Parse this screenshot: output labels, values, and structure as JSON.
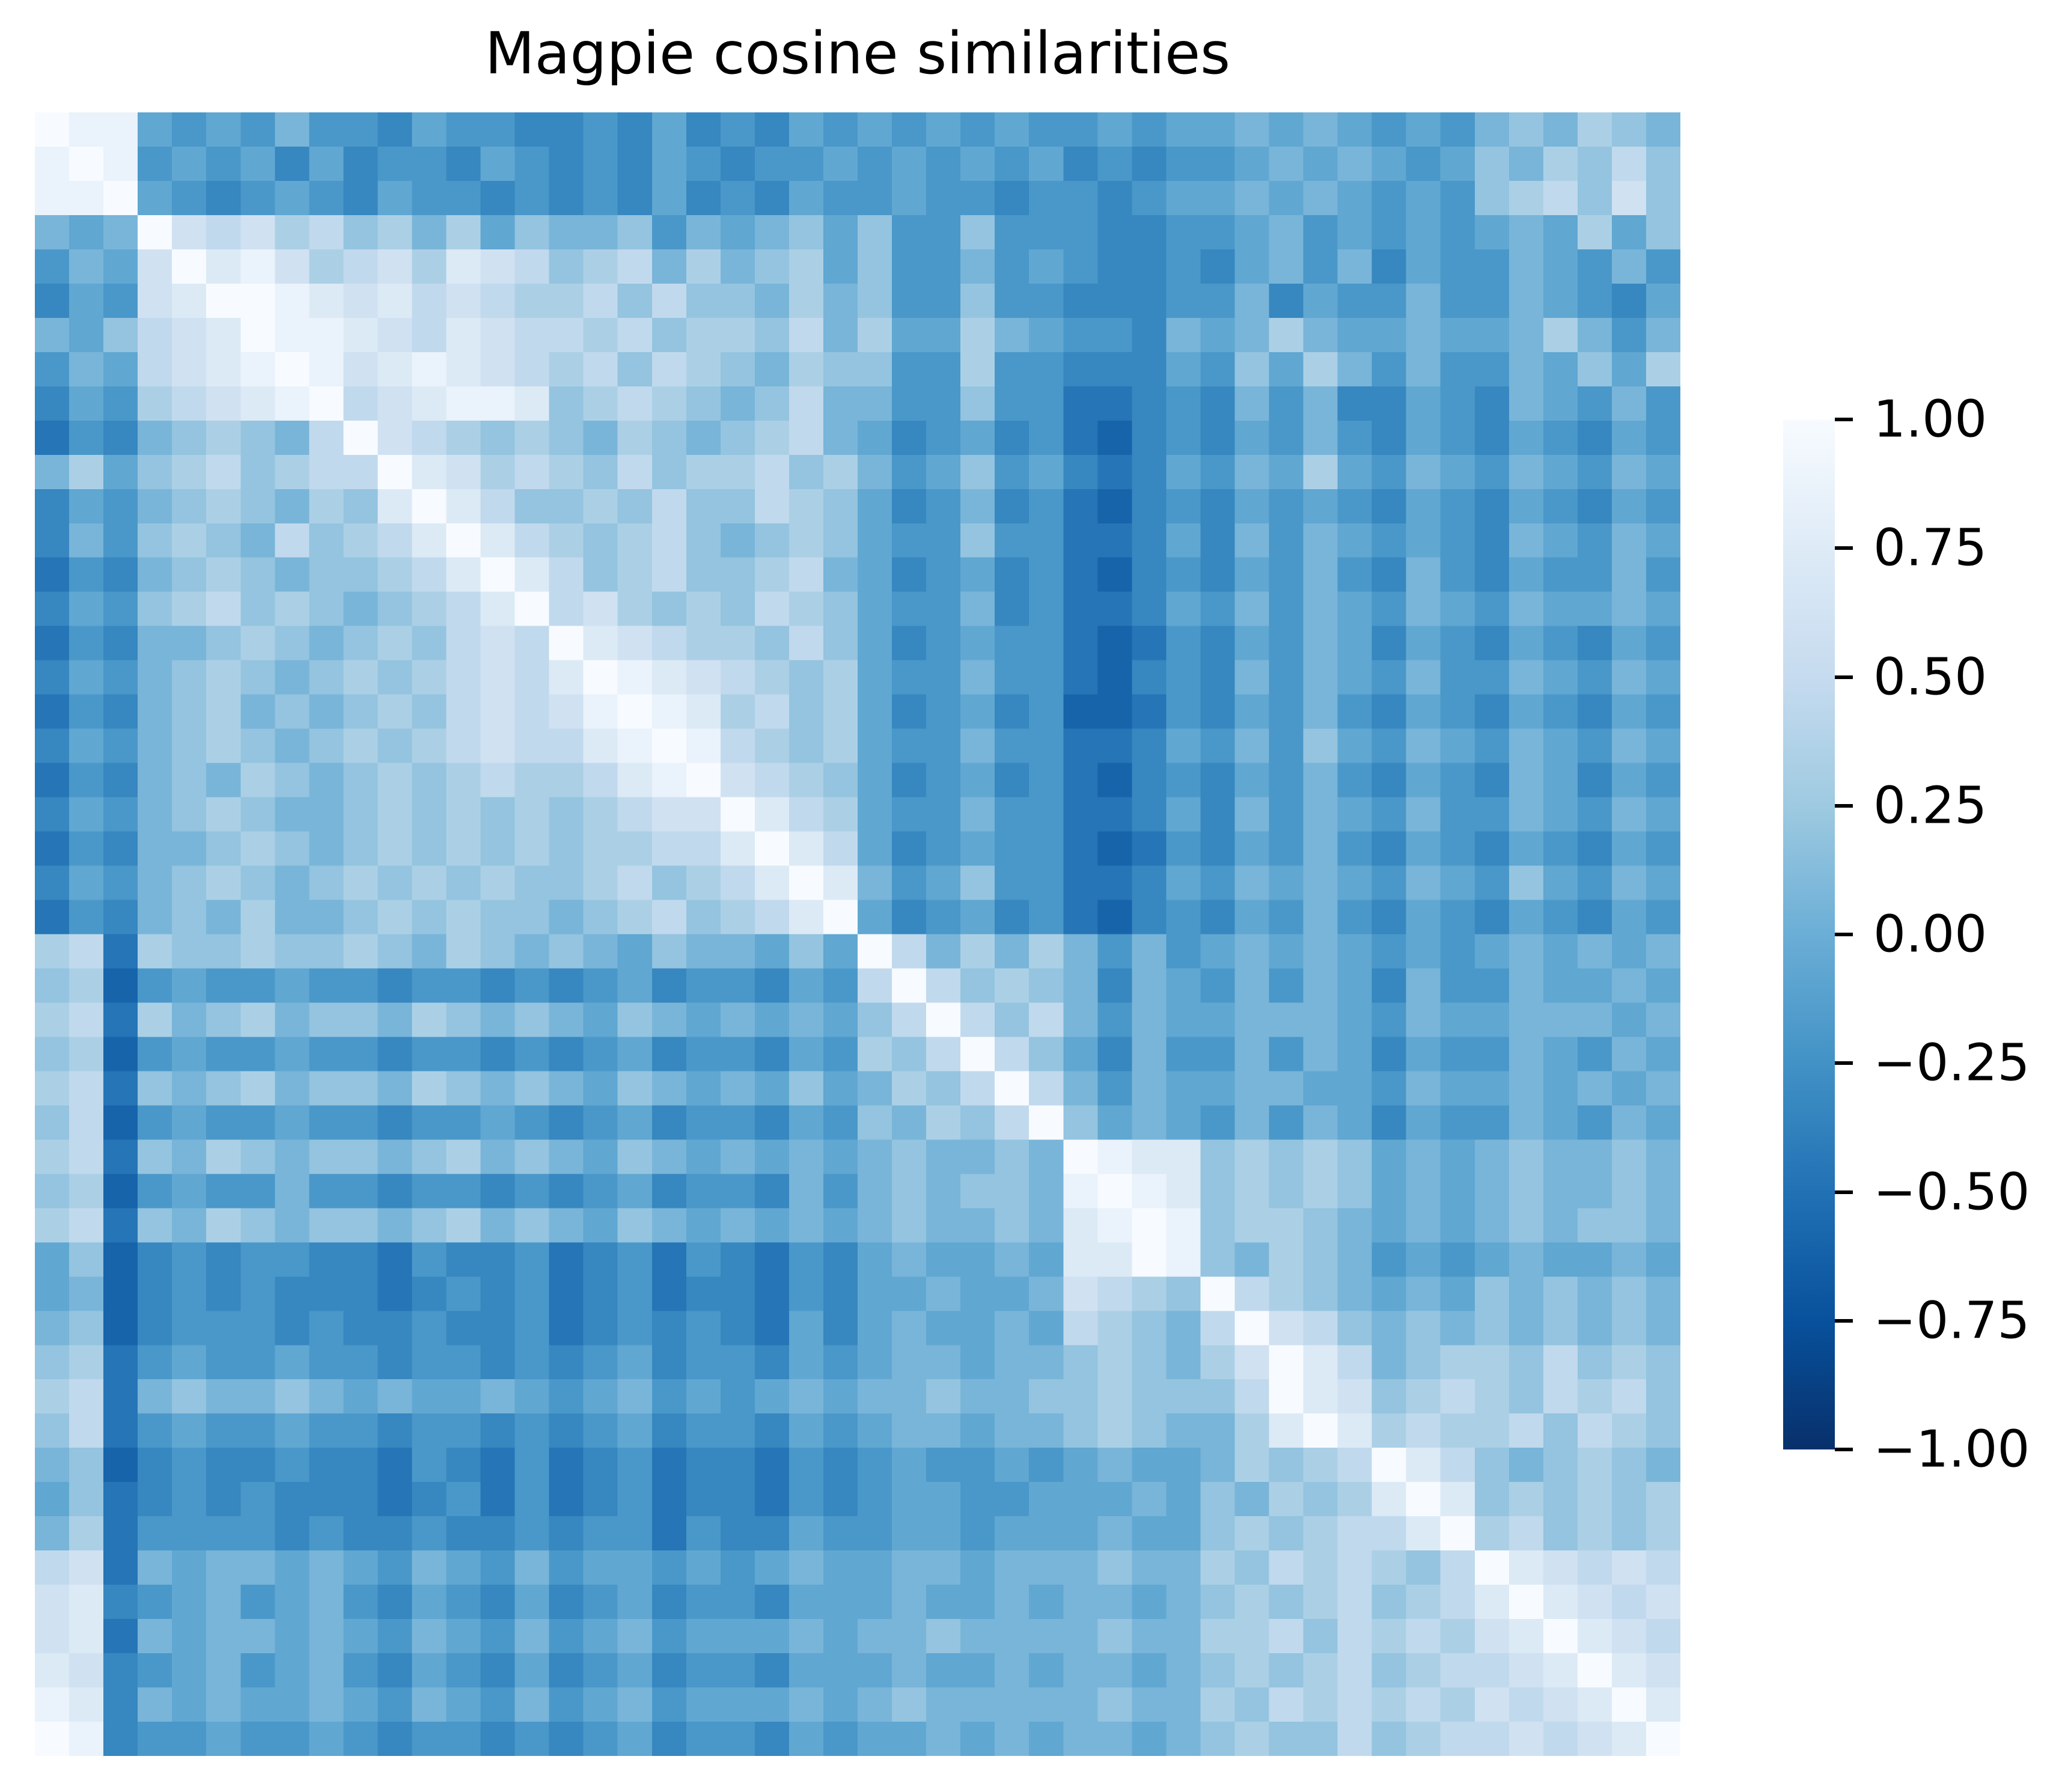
{
  "figure": {
    "title": "Magpie cosine similarities",
    "background_color": "#ffffff",
    "text_color": "#000000"
  },
  "chart_data": {
    "type": "heatmap",
    "title": "Magpie cosine similarities",
    "xlabel": "",
    "ylabel": "",
    "x_tick_labels_visible": false,
    "y_tick_labels_visible": false,
    "grid": false,
    "value_range": [
      -1.0,
      1.0
    ],
    "colormap": {
      "name": "Blues_r (light = high, dark = low)",
      "stops_top_to_bottom": [
        "#f7fbff",
        "#deebf7",
        "#c6dbef",
        "#9ecae1",
        "#6baed6",
        "#4292c6",
        "#2171b5",
        "#08519c",
        "#08306b"
      ]
    },
    "colorbar": {
      "position": "right",
      "ticks": [
        {
          "value": 1.0,
          "label": "1.00"
        },
        {
          "value": 0.75,
          "label": "0.75"
        },
        {
          "value": 0.5,
          "label": "0.50"
        },
        {
          "value": 0.25,
          "label": "0.25"
        },
        {
          "value": 0.0,
          "label": "0.00"
        },
        {
          "value": -0.25,
          "label": "−0.25"
        },
        {
          "value": -0.5,
          "label": "−0.50"
        },
        {
          "value": -0.75,
          "label": "−0.75"
        },
        {
          "value": -1.0,
          "label": "−1.00"
        }
      ]
    },
    "grid_size": 48,
    "value_encoding": "each hex digit 0-f maps linearly to cosine similarity -1.0 (0) through +1.0 (f); matrix is a visually-estimated downsample of the ~95x95 cell grid",
    "matrix_rows": [
      "fee767686657665565756576767676676778787676898a98",
      "efe67675756657656576566767676756566787876798a9b9",
      "eef7656765766565657565766766566567787876769ab9c9",
      "878fcbcab9a8a79889687897966966655667867676787a79",
      "687cfdecabcadcb9ab8a89a7966867655657868576687686",
      "576cdffedcdbcbaab9b998a8966966555668576686687657",
      "879bcdfeedcbdcbbab9aa9b8a77a87665878a8778778a868",
      "687bcdefecdedcbab9ba98a9966a665557697a868668797a",
      "576abcdefbcdeed9aba989b8866966445658685576587686",
      "46589a98bfcba9a98a989ab8756756435657686576576576",
      "8a79ab9abbfdcaba9b9aab9a8679675457687a7687687687",
      "57689a98a9dfdb99a9b99ba9756856435657676576576576",
      "5869a98b9abdfdba9ab989a9766966445758687676587687",
      "46589a9899abdfdb9ab99ab8756756435657686586576686",
      "5769ab9a989abdfbca9a9ba9766856445768687687687787",
      "465889a989a9bcbfdcbaa9b9756766434657687576576576",
      "57689a989a9abcbdfedcba9a766866435658687686687687",
      "46589a8989a9bcbcefedab9a756756334657686576576576",
      "57689a989a9abcbbdefeba9a766866445768697687687687",
      "465898a989a9abaabdefcba9756756435657686576587576",
      "57689a9889a9a9a9abccfdba766866445758687686687687",
      "465889a989a9a9a9aabbdfdb756766434657686576576576",
      "57689a989a9a9a99ab9abdfd867966445768787687697687",
      "465898a889a9a9989ab9abdf756756435657686576576576",
      "ab4a99a99a98a98987988797fb8a8a868678787676787878",
      "9a3676676656656567566576bfb9a9858768687586687787",
      "ab4a89a8998a9898798787879bfb9b868778887687788878",
      "9a3676676656656567566576a9bfb9758668687576687687",
      "ab4989a8998a9898798787978a9bfb868778877687787878",
      "9b367667665667656756657698a9bf978768687576687687",
      "ab498a989989a89879878787898898fedd9a9a9787898898",
      "9a3676686656656567566586898998efed9a9a9787898898",
      "ab498a989989a89879878787898898defe9aa98787898998",
      "793565665546556456465465787787ddfe98a98676787787",
      "783565655545656456455465778778cba9fba98787989898",
      "893566656556556456565475787787ba98bfcb9898989898",
      "9a46766766566565675665767887889a98acfdb89aa9b9a9",
      "ab48988987877876786767878898899a999bfdc9aba9bab9",
      "9b46766766566565675665767887889a988adfdabaab9ba9",
      "89356556554654645645546567667678778a9abfdb989a98",
      "794565655545646456455465677667778798a9adfd9a9a9a",
      "8a466665655655656646557667767778779a9abbdfab9a9a",
      "bc48788787687686776767877887888988a9baba9bfdcbcb",
      "cd567867865765756756657778778788789a9ab9abdfdcbc",
      "cd48788787687686786777878898888988aab9babacdfdcb",
      "dc567867865765756756657778778788789a9ab9abbcdfdc",
      "ed58787787687686786777878988888988a9bababacbcdfd",
      "fe566766765665656756657677878788789a99b9abbcbcdf"
    ]
  }
}
